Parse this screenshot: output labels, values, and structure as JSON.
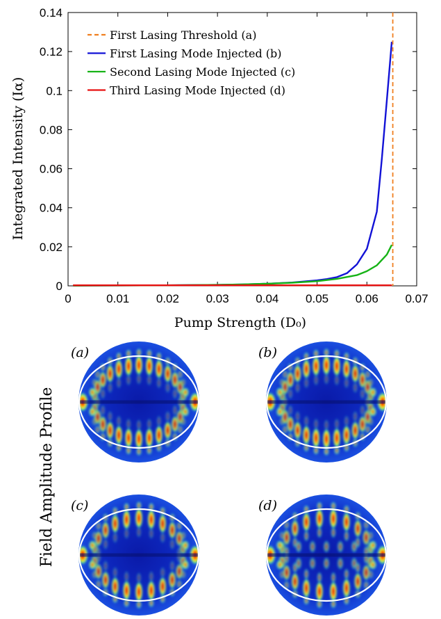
{
  "chart_data": {
    "type": "line",
    "xlabel": "Pump Strength (D₀)",
    "ylabel": "Integrated Intensity (Iα)",
    "xlim": [
      0,
      0.07
    ],
    "ylim": [
      0,
      0.14
    ],
    "xticks": [
      0,
      0.01,
      0.02,
      0.03,
      0.04,
      0.05,
      0.06,
      0.07
    ],
    "xtick_labels": [
      "0",
      "0.01",
      "0.02",
      "0.03",
      "0.04",
      "0.05",
      "0.06",
      "0.07"
    ],
    "yticks": [
      0,
      0.02,
      0.04,
      0.06,
      0.08,
      0.1,
      0.12,
      0.14
    ],
    "ytick_labels": [
      "0",
      "0.02",
      "0.04",
      "0.06",
      "0.08",
      "0.1",
      "0.12",
      "0.14"
    ],
    "grid": false,
    "legend_position": "top-left",
    "threshold": {
      "name": "First Lasing Threshold (a)",
      "x": 0.0652,
      "color": "#f07f1f",
      "style": "dashed"
    },
    "series": [
      {
        "name": "First Lasing Mode Injected (b)",
        "color": "#1212d6",
        "x": [
          0.001,
          0.01,
          0.02,
          0.03,
          0.035,
          0.04,
          0.045,
          0.05,
          0.052,
          0.054,
          0.056,
          0.058,
          0.06,
          0.062,
          0.063,
          0.064,
          0.065
        ],
        "y": [
          0.0001,
          0.0002,
          0.0003,
          0.0005,
          0.0007,
          0.0011,
          0.0017,
          0.0028,
          0.0035,
          0.0045,
          0.0065,
          0.011,
          0.019,
          0.038,
          0.065,
          0.095,
          0.125
        ]
      },
      {
        "name": "Second Lasing Mode Injected (c)",
        "color": "#16b316",
        "x": [
          0.001,
          0.01,
          0.02,
          0.03,
          0.035,
          0.04,
          0.045,
          0.05,
          0.054,
          0.058,
          0.06,
          0.062,
          0.064,
          0.065
        ],
        "y": [
          0.0001,
          0.0002,
          0.0003,
          0.0005,
          0.0007,
          0.0011,
          0.0016,
          0.0024,
          0.0036,
          0.0055,
          0.0075,
          0.0105,
          0.016,
          0.021
        ]
      },
      {
        "name": "Third Lasing Mode Injected (d)",
        "color": "#e81010",
        "x": [
          0.001,
          0.065
        ],
        "y": [
          0.0003,
          0.0003
        ]
      }
    ]
  },
  "profiles": {
    "ylabel": "Field Amplitude Profile",
    "panels": [
      {
        "label": "(a)",
        "lobes": 13,
        "pattern": "whispering"
      },
      {
        "label": "(b)",
        "lobes": 13,
        "pattern": "whispering"
      },
      {
        "label": "(c)",
        "lobes": 11,
        "pattern": "whispering"
      },
      {
        "label": "(d)",
        "lobes": 10,
        "pattern": "mixed"
      }
    ]
  }
}
